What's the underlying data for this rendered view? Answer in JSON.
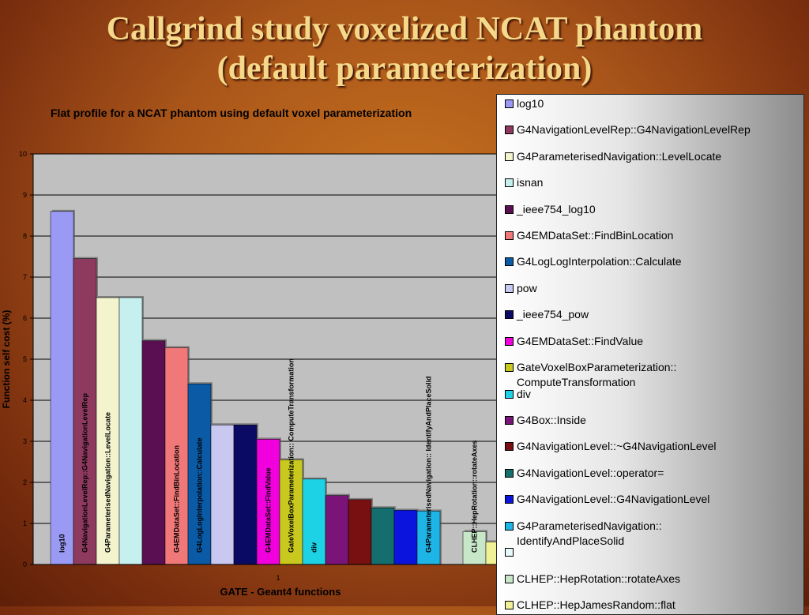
{
  "slide": {
    "title_line1": "Callgrind study voxelized NCAT phantom",
    "title_line2": "(default parameterization)"
  },
  "chart_data": {
    "type": "bar",
    "title": "Flat profile for a NCAT phantom using default voxel parameterization",
    "xlabel": "GATE - Geant4 functions",
    "ylabel": "Function self cost (%)",
    "categories": [
      "1"
    ],
    "ylim": [
      0,
      10
    ],
    "yticks": [
      "0",
      "1",
      "2",
      "3",
      "4",
      "5",
      "6",
      "7",
      "8",
      "9",
      "10"
    ],
    "grid": true,
    "legend_position": "right",
    "series": [
      {
        "name": "log10",
        "value": 8.6,
        "color": "#9a9af5",
        "bar_label": "log10"
      },
      {
        "name": "G4NavigationLevelRep::G4NavigationLevelRep",
        "value": 7.45,
        "color": "#8d3a5e",
        "bar_label": "G4NavigationLevelRep::G4NavigationLevelRep"
      },
      {
        "name": "G4ParameterisedNavigation::LevelLocate",
        "value": 6.5,
        "color": "#f3f3cd",
        "bar_label": "G4ParameterisedNavigation::LevelLocate"
      },
      {
        "name": "isnan",
        "value": 6.5,
        "color": "#c6f0f0",
        "bar_label": ""
      },
      {
        "name": "_ieee754_log10",
        "value": 5.45,
        "color": "#5a0f52",
        "bar_label": ""
      },
      {
        "name": "G4EMDataSet::FindBinLocation",
        "value": 5.28,
        "color": "#f07878",
        "bar_label": "G4EMDataSet::FindBinLocation"
      },
      {
        "name": "G4LogLogInterpolation::Calculate",
        "value": 4.4,
        "color": "#0a5aa6",
        "bar_label": "G4LogLogInterpolation::Calculate"
      },
      {
        "name": "pow",
        "value": 3.4,
        "color": "#c8c8f0",
        "bar_label": ""
      },
      {
        "name": "_ieee754_pow",
        "value": 3.4,
        "color": "#0a0a64",
        "bar_label": ""
      },
      {
        "name": "G4EMDataSet::FindValue",
        "value": 3.05,
        "color": "#f000dc",
        "bar_label": "G4EMDataSet::FindValue"
      },
      {
        "name": "GateVoxelBoxParameterization::ComputeTransformation",
        "value": 2.55,
        "color": "#c8c81e",
        "bar_label": "GateVoxelBoxParameterization:: ComputeTransformation"
      },
      {
        "name": "div",
        "value": 2.08,
        "color": "#1ed2e6",
        "bar_label": "div"
      },
      {
        "name": "G4Box::Inside",
        "value": 1.68,
        "color": "#7a1478",
        "bar_label": ""
      },
      {
        "name": "G4NavigationLevel::~G4NavigationLevel",
        "value": 1.58,
        "color": "#780f10",
        "bar_label": ""
      },
      {
        "name": "G4NavigationLevel::operator=",
        "value": 1.38,
        "color": "#146e6e",
        "bar_label": ""
      },
      {
        "name": "G4NavigationLevel::G4NavigationLevel",
        "value": 1.32,
        "color": "#0a14dc",
        "bar_label": ""
      },
      {
        "name": "G4ParameterisedNavigation::IdentifyAndPlaceSolid",
        "value": 1.3,
        "color": "#1eb4e6",
        "bar_label": "G4ParameterisedNavigation:: IdentifyAndPlaceSolid"
      },
      {
        "name": "",
        "value": 0.0,
        "color": "#e6fafa",
        "bar_label": ""
      },
      {
        "name": "CLHEP::HepRotation::rotateAxes",
        "value": 0.8,
        "color": "#c8e6c8",
        "bar_label": "CLHEP::HepRotation::rotateAxes"
      },
      {
        "name": "CLHEP::HepJamesRandom::flat",
        "value": 0.55,
        "color": "#f0f096",
        "bar_label": ""
      }
    ],
    "legend_labels": [
      [
        "log10"
      ],
      [
        "G4NavigationLevelRep::G4NavigationLevelRep"
      ],
      [
        "G4ParameterisedNavigation::LevelLocate"
      ],
      [
        "isnan"
      ],
      [
        "_ieee754_log10"
      ],
      [
        "G4EMDataSet::FindBinLocation"
      ],
      [
        "G4LogLogInterpolation::Calculate"
      ],
      [
        "pow"
      ],
      [
        "_ieee754_pow"
      ],
      [
        "G4EMDataSet::FindValue"
      ],
      [
        "GateVoxelBoxParameterization::",
        "ComputeTransformation"
      ],
      [
        "div"
      ],
      [
        "G4Box::Inside"
      ],
      [
        "G4NavigationLevel::~G4NavigationLevel"
      ],
      [
        "G4NavigationLevel::operator="
      ],
      [
        "G4NavigationLevel::G4NavigationLevel"
      ],
      [
        "G4ParameterisedNavigation::",
        "IdentifyAndPlaceSolid"
      ],
      [
        ""
      ],
      [
        "CLHEP::HepRotation::rotateAxes"
      ],
      [
        "CLHEP::HepJamesRandom::flat"
      ]
    ]
  }
}
